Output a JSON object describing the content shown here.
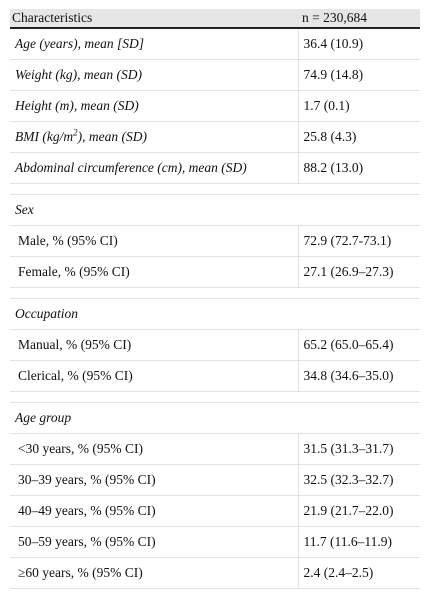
{
  "table": {
    "headers": [
      "Characteristics",
      "n = 230,684"
    ],
    "summary_rows": [
      {
        "label_pre": "Age (years), mean [SD]",
        "label_sup": "",
        "label_post": "",
        "value": "36.4 (10.9)"
      },
      {
        "label_pre": "Weight (kg), mean (SD)",
        "label_sup": "",
        "label_post": "",
        "value": "74.9 (14.8)"
      },
      {
        "label_pre": "Height (m), mean (SD)",
        "label_sup": "",
        "label_post": "",
        "value": "1.7 (0.1)"
      },
      {
        "label_pre": "BMI (kg/m",
        "label_sup": "2",
        "label_post": "), mean (SD)",
        "value": "25.8 (4.3)"
      },
      {
        "label_pre": "Abdominal circumference (cm), mean (SD)",
        "label_sup": "",
        "label_post": "",
        "value": "88.2 (13.0)"
      }
    ],
    "sections": [
      {
        "title": "Sex",
        "rows": [
          {
            "label": "Male, % (95% CI)",
            "value": "72.9 (72.7-73.1)"
          },
          {
            "label": "Female, % (95% CI)",
            "value": "27.1 (26.9–27.3)"
          }
        ]
      },
      {
        "title": "Occupation",
        "rows": [
          {
            "label": "Manual, % (95% CI)",
            "value": "65.2 (65.0–65.4)"
          },
          {
            "label": "Clerical, % (95% CI)",
            "value": "34.8 (34.6–35.0)"
          }
        ]
      },
      {
        "title": "Age group",
        "rows": [
          {
            "label": "<30 years, % (95% CI)",
            "value": "31.5 (31.3–31.7)"
          },
          {
            "label": "30–39 years, % (95% CI)",
            "value": "32.5 (32.3–32.7)"
          },
          {
            "label": "40–49 years, % (95% CI)",
            "value": "21.9 (21.7–22.0)"
          },
          {
            "label": "50–59 years, % (95% CI)",
            "value": "11.7 (11.6–11.9)"
          },
          {
            "label": "≥60 years, % (95% CI)",
            "value": "2.4 (2.4–2.5)"
          }
        ]
      }
    ]
  }
}
